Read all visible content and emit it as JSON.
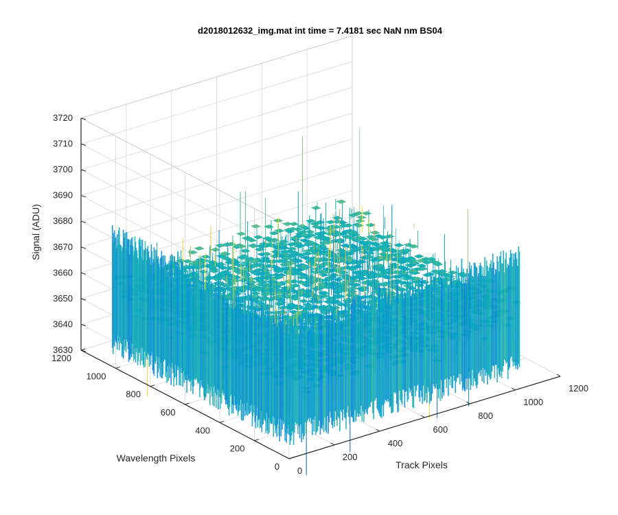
{
  "chart_data": {
    "type": "surface",
    "title": "d2018012632_img.mat int time = 7.4181 sec  NaN nm BS04",
    "xlabel": "Track Pixels",
    "ylabel": "Wavelength Pixels",
    "zlabel": "Signal (ADU)",
    "x_ticks": [
      0,
      200,
      400,
      600,
      800,
      1000,
      1200
    ],
    "y_ticks": [
      0,
      200,
      400,
      600,
      800,
      1000,
      1200
    ],
    "z_ticks": [
      3630,
      3640,
      3650,
      3660,
      3670,
      3680,
      3690,
      3700,
      3710,
      3720
    ],
    "x_tick_labels": [
      "0",
      "200",
      "400",
      "600",
      "800",
      "1000",
      "1200"
    ],
    "y_tick_labels": [
      "0",
      "200",
      "400",
      "600",
      "800",
      "1000",
      "1200"
    ],
    "z_tick_labels": [
      "3630",
      "3640",
      "3650",
      "3660",
      "3670",
      "3680",
      "3690",
      "3700",
      "3710",
      "3720"
    ],
    "xlim": [
      0,
      1200
    ],
    "ylim": [
      0,
      1200
    ],
    "zlim": [
      3630,
      3720
    ],
    "surface": {
      "x_range": [
        1,
        1024
      ],
      "y_range": [
        1,
        1024
      ],
      "z_mean": 3660,
      "z_typical_range": [
        3645,
        3675
      ],
      "z_extremes": [
        3632,
        3712
      ],
      "colormap": "parula"
    },
    "grid": true,
    "box": true
  }
}
